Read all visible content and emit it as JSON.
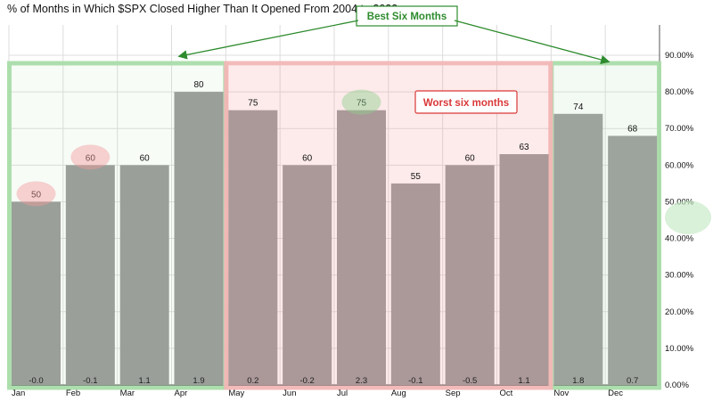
{
  "chart_data": {
    "type": "bar",
    "title": "% of Months in Which $SPX Closed Higher Than It Opened From 2004 to 2023",
    "categories": [
      "Jan",
      "Feb",
      "Mar",
      "Apr",
      "May",
      "Jun",
      "Jul",
      "Aug",
      "Sep",
      "Oct",
      "Nov",
      "Dec"
    ],
    "values": [
      50,
      60,
      60,
      80,
      75,
      60,
      75,
      55,
      60,
      63,
      74,
      68
    ],
    "average_change": [
      "-0.0",
      "-0.1",
      "1.1",
      "1.9",
      "0.2",
      "-0.2",
      "2.3",
      "-0.1",
      "-0.5",
      "1.1",
      "1.8",
      "0.7"
    ],
    "ylim": [
      0,
      90
    ],
    "yticks": [
      "0.00%",
      "10.00%",
      "20.00%",
      "30.00%",
      "40.00%",
      "50.00%",
      "60.00%",
      "70.00%",
      "80.00%",
      "90.00%"
    ],
    "y_axis_side": "right",
    "grid": true,
    "annotations": {
      "best": {
        "label": "Best Six Months",
        "months": [
          "Jan",
          "Feb",
          "Mar",
          "Apr",
          "Nov",
          "Dec"
        ],
        "color": "#2e8b2e"
      },
      "worst": {
        "label": "Worst six months",
        "months": [
          "May",
          "Jun",
          "Jul",
          "Aug",
          "Sep",
          "Oct"
        ],
        "color": "#d93838"
      },
      "highlighted_values": [
        {
          "month": "Jan",
          "color": "red"
        },
        {
          "month": "Feb",
          "color": "red"
        },
        {
          "month": "Jul",
          "color": "green"
        }
      ]
    }
  },
  "colors": {
    "bar": "#969696",
    "best_box": "#a9dca9",
    "worst_box": "#f2b6b6",
    "best_text": "#2e8b2e",
    "worst_text": "#d93838"
  }
}
